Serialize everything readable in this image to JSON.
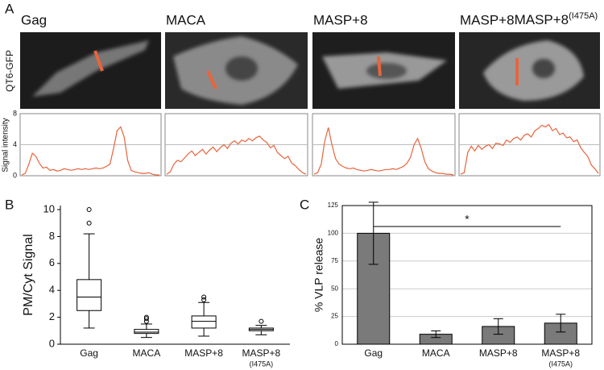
{
  "chart_data": [
    {
      "type": "profile",
      "panel_label": "A",
      "image_label": "QT6-GFP",
      "ylabel": "Signal intensity",
      "ylim": [
        0,
        8
      ],
      "yticks": [
        0,
        4,
        8
      ],
      "grid": true,
      "series": [
        {
          "name": "Gag",
          "color": "#e8643c",
          "values": [
            0.1,
            0.3,
            1.5,
            2.9,
            2.5,
            1.6,
            1.0,
            1.1,
            0.7,
            0.8,
            0.6,
            0.7,
            0.9,
            0.8,
            0.7,
            0.8,
            0.9,
            0.8,
            0.9,
            0.8,
            0.9,
            1.0,
            0.9,
            1.0,
            1.2,
            1.5,
            3.5,
            5.8,
            6.3,
            5.0,
            2.0,
            0.7,
            0.5,
            0.4,
            0.3,
            0.3,
            0.4,
            0.2,
            0.1,
            0.1
          ]
        },
        {
          "name": "MACA",
          "color": "#e8643c",
          "values": [
            0.2,
            0.5,
            1.5,
            2.0,
            1.8,
            2.3,
            2.8,
            3.2,
            2.6,
            3.0,
            3.4,
            2.8,
            3.3,
            3.7,
            3.1,
            3.6,
            4.0,
            3.5,
            4.2,
            4.5,
            4.1,
            4.6,
            4.4,
            4.8,
            4.5,
            4.9,
            5.1,
            4.6,
            4.3,
            3.6,
            3.9,
            3.0,
            2.6,
            2.2,
            2.5,
            1.6,
            1.3,
            0.8,
            0.4,
            0.2
          ]
        },
        {
          "name": "MASP+8",
          "color": "#e8643c",
          "values": [
            0.2,
            0.4,
            1.5,
            4.5,
            6.2,
            4.0,
            2.2,
            1.5,
            1.2,
            1.0,
            0.9,
            1.0,
            0.8,
            0.7,
            0.6,
            0.7,
            0.8,
            0.7,
            0.6,
            0.7,
            0.8,
            0.8,
            0.9,
            0.8,
            1.0,
            1.2,
            1.6,
            2.4,
            4.0,
            4.8,
            3.5,
            1.8,
            0.9,
            0.6,
            0.4,
            0.3,
            0.3,
            0.2,
            0.2,
            0.1
          ]
        },
        {
          "name": "MASP+8",
          "superscript": "(I475A)",
          "color": "#e8643c",
          "values": [
            0.2,
            0.4,
            3.0,
            3.8,
            3.2,
            3.9,
            3.4,
            3.8,
            4.0,
            3.5,
            4.2,
            4.1,
            3.9,
            4.6,
            4.3,
            4.8,
            5.0,
            4.6,
            5.2,
            5.4,
            5.0,
            5.8,
            6.1,
            6.5,
            6.3,
            6.6,
            5.8,
            6.1,
            5.3,
            5.5,
            4.9,
            5.0,
            4.4,
            4.6,
            3.6,
            3.0,
            2.5,
            1.4,
            0.9,
            0.3
          ]
        }
      ]
    },
    {
      "type": "box",
      "panel_label": "B",
      "ylabel": "PM/Cyt Signal",
      "categories": [
        "Gag",
        "MACA",
        "MASP+8",
        "MASP+8"
      ],
      "category_sublabels": [
        null,
        null,
        null,
        "(I475A)"
      ],
      "ylim": [
        0,
        10.3
      ],
      "yticks": [
        0,
        2,
        4,
        6,
        8,
        10
      ],
      "boxes": [
        {
          "whislo": 1.2,
          "q1": 2.5,
          "med": 3.5,
          "q3": 4.8,
          "whishi": 8.2,
          "fliers": [
            9.0,
            10.0
          ]
        },
        {
          "whislo": 0.5,
          "q1": 0.8,
          "med": 0.9,
          "q3": 1.1,
          "whishi": 1.5,
          "fliers": [
            1.7,
            1.9,
            2.0
          ]
        },
        {
          "whislo": 0.6,
          "q1": 1.2,
          "med": 1.7,
          "q3": 2.1,
          "whishi": 3.1,
          "fliers": [
            3.3,
            3.5
          ]
        },
        {
          "whislo": 0.7,
          "q1": 1.0,
          "med": 1.1,
          "q3": 1.2,
          "whishi": 1.4,
          "fliers": [
            1.7
          ]
        }
      ]
    },
    {
      "type": "bar",
      "panel_label": "C",
      "ylabel": "% VLP release",
      "categories": [
        "Gag",
        "MACA",
        "MASP+8",
        "MASP+8"
      ],
      "category_sublabels": [
        null,
        null,
        null,
        "(I475A)"
      ],
      "values": [
        100,
        9,
        16,
        19
      ],
      "errors": [
        28,
        3,
        7,
        8
      ],
      "color": "#7a7a7a",
      "ylim": [
        0,
        125
      ],
      "yticks": [
        0,
        25,
        50,
        75,
        100,
        125
      ],
      "grid": true,
      "annotation": "*"
    }
  ]
}
